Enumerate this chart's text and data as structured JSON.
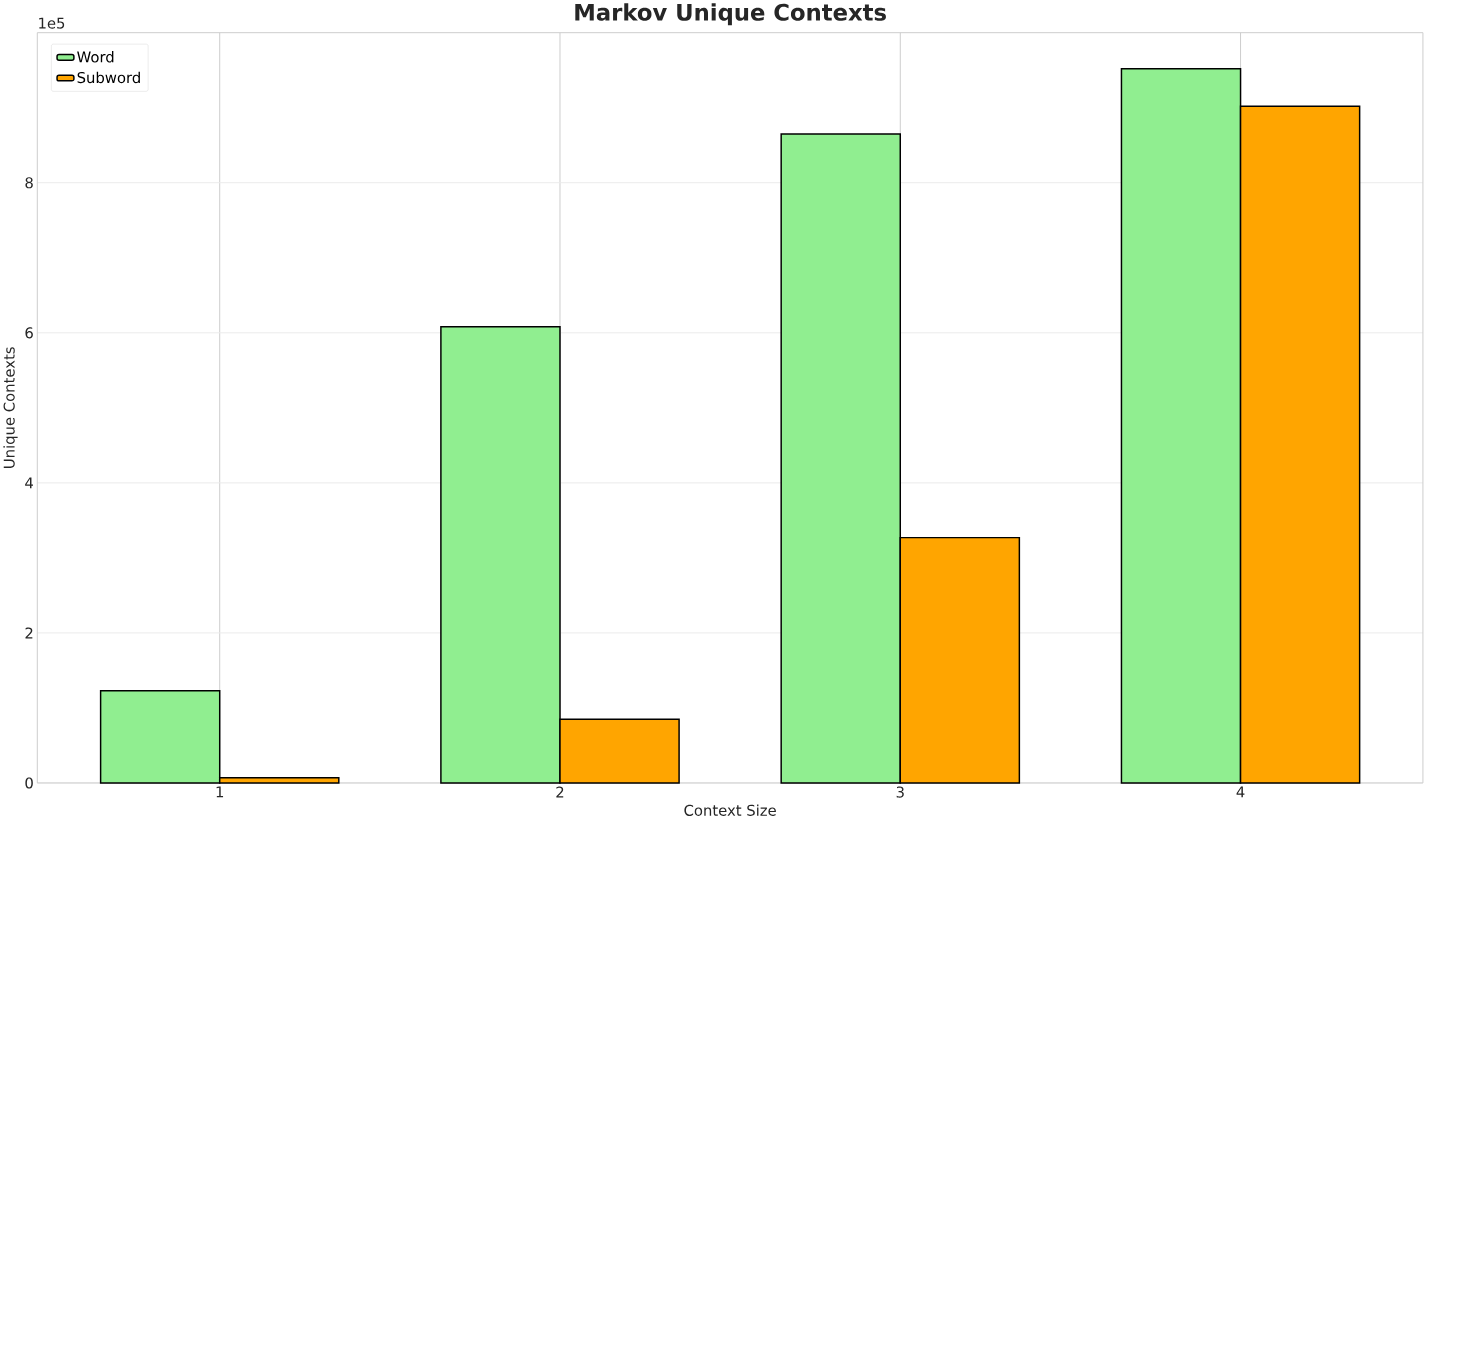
{
  "chart_data": {
    "type": "bar",
    "title": "Markov Unique Contexts",
    "xlabel": "Context Size",
    "ylabel": "Unique Contexts",
    "categories": [
      "1",
      "2",
      "3",
      "4"
    ],
    "series": [
      {
        "name": "Word",
        "color": "#90ee90",
        "values": [
          1.23,
          6.08,
          8.65,
          9.52
        ]
      },
      {
        "name": "Subword",
        "color": "#ffa500",
        "values": [
          0.07,
          0.85,
          3.27,
          9.02
        ]
      }
    ],
    "ylim": [
      0,
      10
    ],
    "yticks": [
      0,
      2,
      4,
      6,
      8
    ],
    "annotations": [
      "1e5"
    ],
    "grid": true,
    "legend": "top left"
  }
}
